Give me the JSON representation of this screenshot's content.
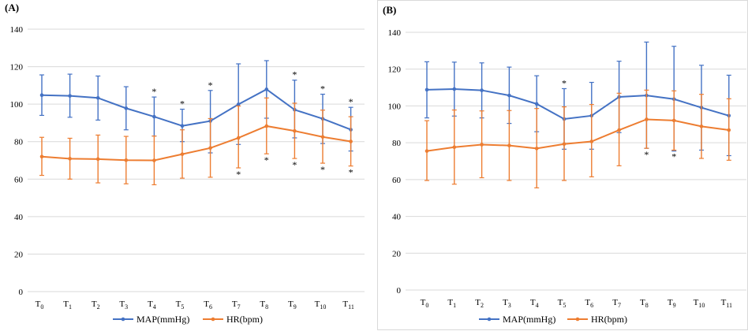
{
  "chart_data": [
    {
      "panel_label": "(A)",
      "type": "line",
      "categories": [
        "T0",
        "T1",
        "T2",
        "T3",
        "T4",
        "T5",
        "T6",
        "T7",
        "T8",
        "T9",
        "T10",
        "T11"
      ],
      "ylim": [
        0,
        140
      ],
      "yticks": [
        0,
        20,
        40,
        60,
        80,
        100,
        120,
        140
      ],
      "grid": "horizontal",
      "legend_position": "bottom-center",
      "series": [
        {
          "name": "MAP(mmHg)",
          "color": "#4472C4",
          "values": [
            104.8,
            104.4,
            103.3,
            97.8,
            93.3,
            88.4,
            91.0,
            99.9,
            107.9,
            97.0,
            92.2,
            86.4
          ],
          "err_low": [
            94.0,
            93.0,
            91.5,
            86.3,
            83.0,
            80.0,
            74.0,
            78.5,
            92.5,
            82.0,
            79.0,
            75.0
          ],
          "err_high": [
            115.6,
            116.0,
            115.0,
            109.3,
            103.8,
            97.3,
            107.3,
            121.5,
            123.2,
            112.8,
            105.3,
            98.3
          ],
          "markers_top": [
            false,
            false,
            false,
            false,
            true,
            true,
            true,
            false,
            false,
            true,
            true,
            true
          ]
        },
        {
          "name": "HR(bpm)",
          "color": "#ED7D31",
          "values": [
            72.0,
            70.9,
            70.7,
            70.1,
            70.0,
            73.3,
            76.6,
            82.0,
            88.3,
            85.7,
            82.5,
            80.1
          ],
          "err_low": [
            62.0,
            60.0,
            58.0,
            57.5,
            57.0,
            60.5,
            61.0,
            66.0,
            73.5,
            71.0,
            68.5,
            67.0
          ],
          "err_high": [
            82.3,
            81.8,
            83.5,
            82.8,
            83.0,
            86.3,
            92.3,
            99.0,
            103.3,
            100.5,
            96.8,
            93.3
          ],
          "markers_bottom": [
            false,
            false,
            false,
            false,
            false,
            false,
            false,
            true,
            true,
            true,
            true,
            true
          ]
        }
      ],
      "annotation_symbol": "*"
    },
    {
      "panel_label": "(B)",
      "type": "line",
      "categories": [
        "T0",
        "T1",
        "T2",
        "T3",
        "T4",
        "T5",
        "T6",
        "T7",
        "T8",
        "T9",
        "T10",
        "T11"
      ],
      "ylim": [
        0,
        140
      ],
      "yticks": [
        0,
        20,
        40,
        60,
        80,
        100,
        120,
        140
      ],
      "grid": "horizontal",
      "legend_position": "bottom-center",
      "series": [
        {
          "name": "MAP(mmHg)",
          "color": "#4472C4",
          "values": [
            108.8,
            109.2,
            108.5,
            105.7,
            101.1,
            92.9,
            94.7,
            104.9,
            105.7,
            103.7,
            99.1,
            94.7
          ],
          "err_low": [
            93.5,
            94.5,
            93.5,
            90.5,
            86.0,
            76.5,
            76.5,
            85.5,
            77.0,
            75.5,
            76.0,
            73.0
          ],
          "err_high": [
            124.0,
            123.8,
            123.4,
            121.1,
            116.4,
            109.4,
            112.8,
            124.3,
            134.7,
            132.4,
            122.1,
            116.7
          ],
          "markers_top": [
            false,
            false,
            false,
            false,
            false,
            true,
            false,
            false,
            false,
            false,
            false,
            false
          ]
        },
        {
          "name": "HR(bpm)",
          "color": "#ED7D31",
          "values": [
            75.5,
            77.6,
            79.0,
            78.5,
            76.9,
            79.3,
            80.7,
            86.9,
            92.7,
            92.1,
            88.9,
            86.9
          ],
          "err_low": [
            59.5,
            57.5,
            61.0,
            59.5,
            55.5,
            59.5,
            61.5,
            67.5,
            77.0,
            76.0,
            71.5,
            70.5
          ],
          "err_high": [
            92.0,
            97.8,
            97.3,
            97.5,
            98.6,
            99.5,
            100.8,
            106.9,
            108.6,
            108.2,
            106.3,
            103.9
          ],
          "markers_bottom": [
            false,
            false,
            false,
            false,
            false,
            false,
            false,
            false,
            true,
            true,
            false,
            false
          ]
        }
      ],
      "annotation_symbol": "*"
    }
  ]
}
